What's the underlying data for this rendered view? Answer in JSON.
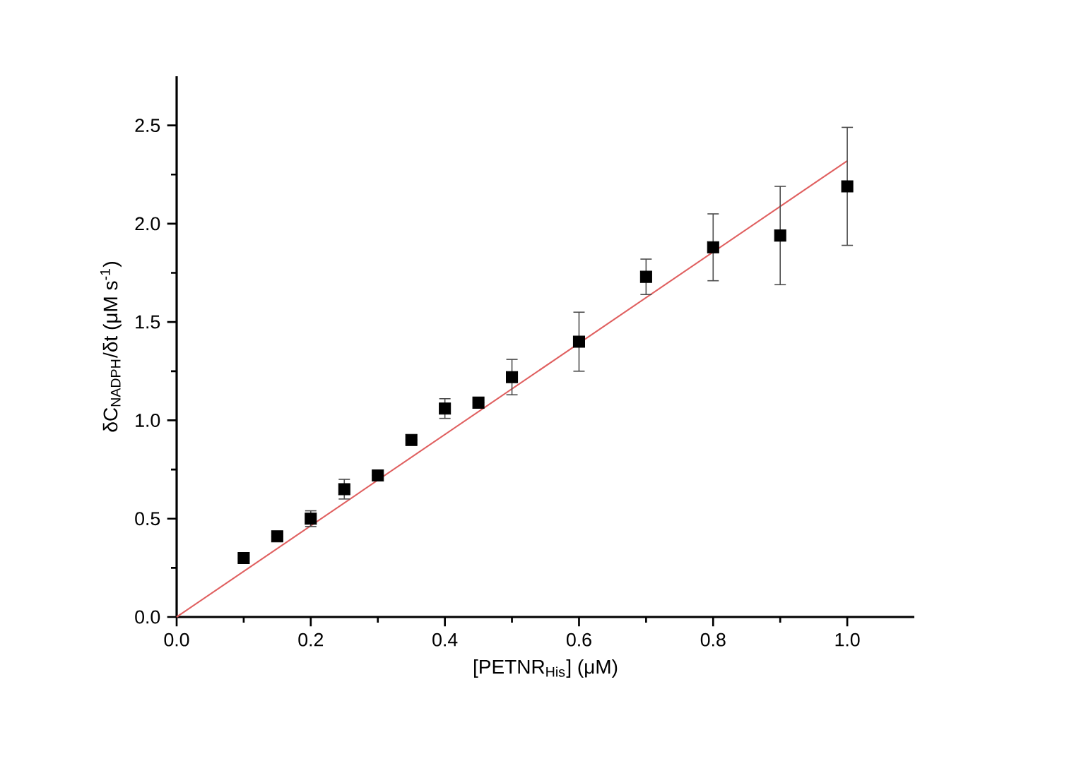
{
  "chart_data": {
    "type": "scatter",
    "xlabel": "[PETNR$_{His}$] (μM)",
    "ylabel": "δC$_{NADPH}$/δt (μM s$^{-1}$)",
    "xlim": [
      0,
      1.1
    ],
    "ylim": [
      0,
      2.75
    ],
    "xticks": [
      {
        "value": 0,
        "label": "0.0"
      },
      {
        "value": 0.2,
        "label": "0.2"
      },
      {
        "value": 0.4,
        "label": "0.4"
      },
      {
        "value": 0.6,
        "label": "0.6"
      },
      {
        "value": 0.8,
        "label": "0.8"
      },
      {
        "value": 1.0,
        "label": "1.0"
      }
    ],
    "yticks": [
      {
        "value": 0,
        "label": "0.0"
      },
      {
        "value": 0.5,
        "label": "0.5"
      },
      {
        "value": 1.0,
        "label": "1.0"
      },
      {
        "value": 1.5,
        "label": "1.5"
      },
      {
        "value": 2.0,
        "label": "2.0"
      },
      {
        "value": 2.5,
        "label": "2.5"
      }
    ],
    "grid": false,
    "series": [
      {
        "color": "#000000",
        "marker": "square",
        "x": [
          0.1,
          0.15,
          0.2,
          0.25,
          0.3,
          0.35,
          0.4,
          0.45,
          0.5,
          0.6,
          0.7,
          0.8,
          0.9,
          1.0
        ],
        "values": [
          0.3,
          0.41,
          0.5,
          0.65,
          0.72,
          0.9,
          1.06,
          1.09,
          1.22,
          1.4,
          1.73,
          1.88,
          1.94,
          2.19
        ],
        "errors": [
          null,
          null,
          0.04,
          0.05,
          null,
          null,
          0.05,
          null,
          0.09,
          0.15,
          0.09,
          0.17,
          0.25,
          0.3
        ]
      },
      {
        "type": "line",
        "color": "#e06060",
        "marker": "none",
        "line_style": "solid",
        "x": [
          0,
          1.0
        ],
        "values": [
          0,
          2.32
        ]
      }
    ]
  }
}
